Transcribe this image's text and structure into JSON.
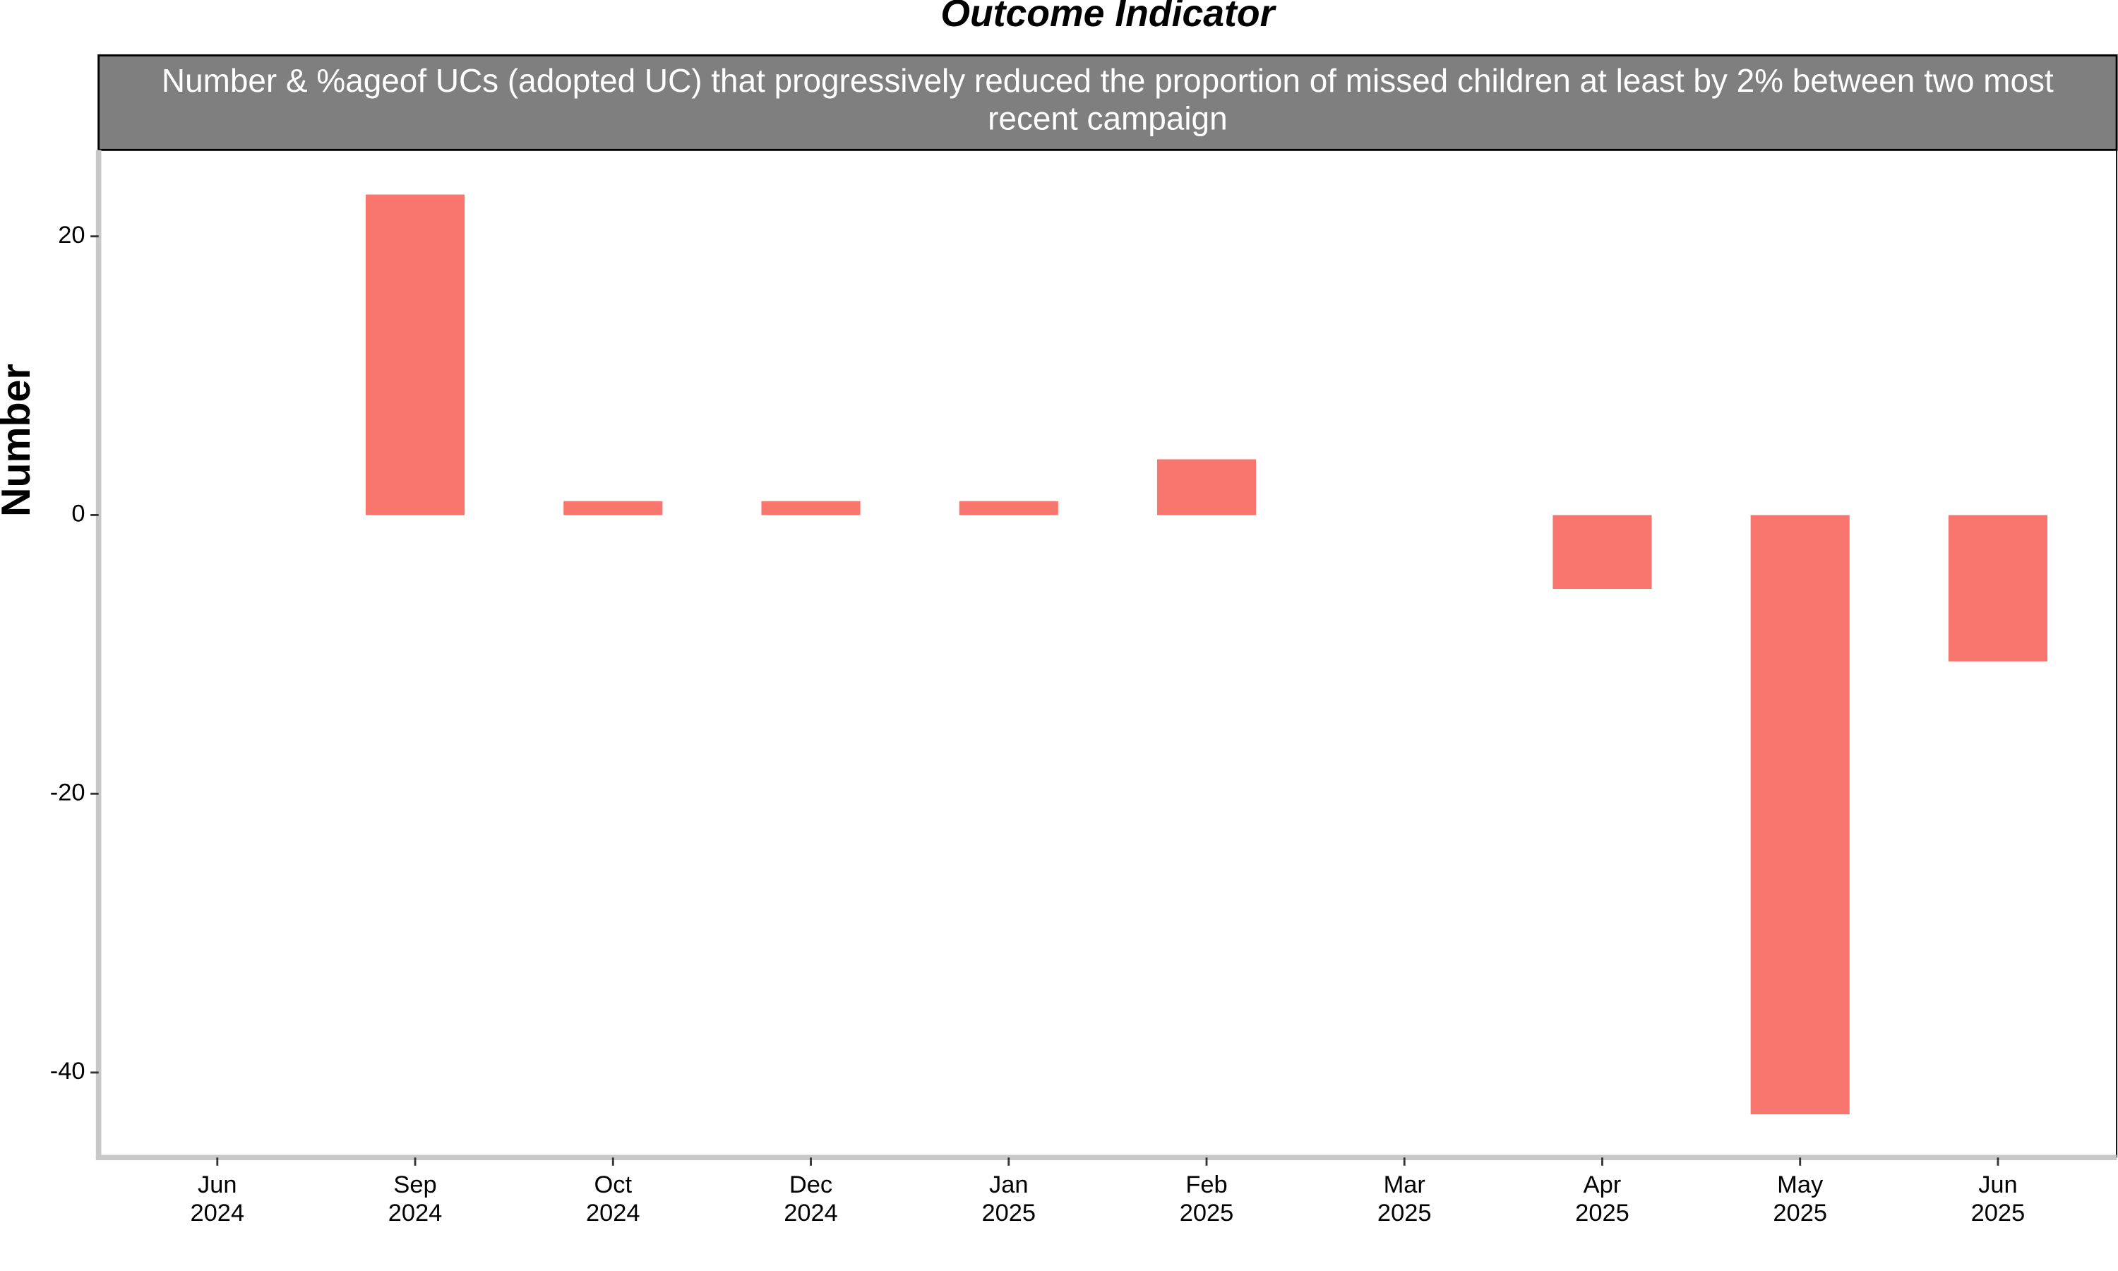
{
  "chart_data": {
    "type": "bar",
    "title": "Outcome Indicator",
    "strip_label": "Number & %ageof UCs (adopted UC) that progressively reduced the proportion of missed children at least by 2% between two most recent campaign",
    "y_label": "Number",
    "categories": [
      "Jun 2024",
      "Sep 2024",
      "Oct 2024",
      "Dec 2024",
      "Jan 2025",
      "Feb 2025",
      "Mar 2025",
      "Apr 2025",
      "May 2025",
      "Jun 2025"
    ],
    "values": [
      0,
      23,
      1,
      1,
      1,
      4,
      0,
      -5.3,
      -43,
      -10.5
    ],
    "color": "#f8766d",
    "ylim": [
      -46.1,
      26.2
    ],
    "yticks": [
      -40,
      -20,
      0,
      20
    ]
  }
}
